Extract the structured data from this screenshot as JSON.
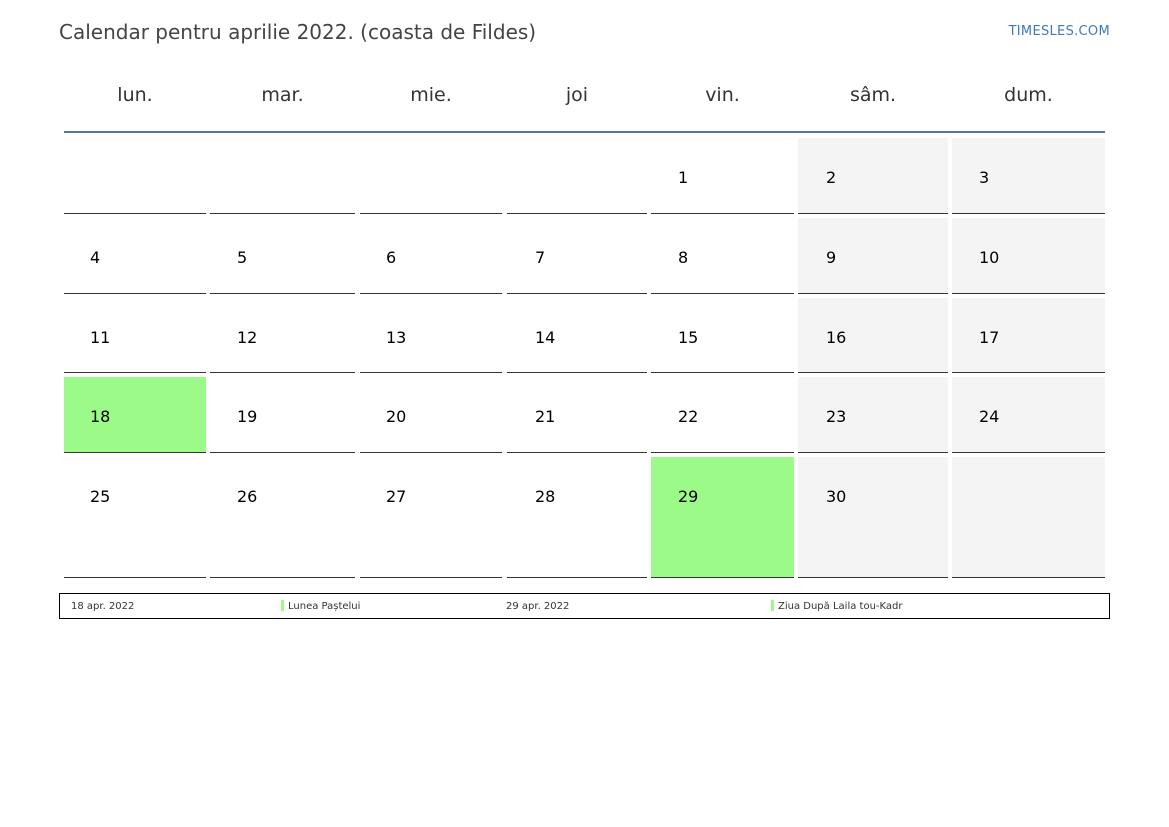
{
  "header": {
    "title": "Calendar pentru aprilie 2022. (coasta de Fildes)",
    "brand": "TIMESLES.COM"
  },
  "weekdays": [
    "lun.",
    "mar.",
    "mie.",
    "joi",
    "vin.",
    "sâm.",
    "dum."
  ],
  "weeks": [
    [
      "",
      "",
      "",
      "",
      "1",
      "2",
      "3"
    ],
    [
      "4",
      "5",
      "6",
      "7",
      "8",
      "9",
      "10"
    ],
    [
      "11",
      "12",
      "13",
      "14",
      "15",
      "16",
      "17"
    ],
    [
      "18",
      "19",
      "20",
      "21",
      "22",
      "23",
      "24"
    ],
    [
      "25",
      "26",
      "27",
      "28",
      "29",
      "30",
      ""
    ]
  ],
  "holiday_days": [
    "18",
    "29"
  ],
  "colors": {
    "holiday": "#9cfa89",
    "weekend": "#f4f4f4",
    "accent_line": "#5b7594",
    "brand": "#3d7ab6"
  },
  "legend": [
    {
      "date": "18 apr. 2022",
      "name": "Lunea Paștelui"
    },
    {
      "date": "29 apr. 2022",
      "name": "Ziua După Laila tou-Kadr"
    }
  ]
}
